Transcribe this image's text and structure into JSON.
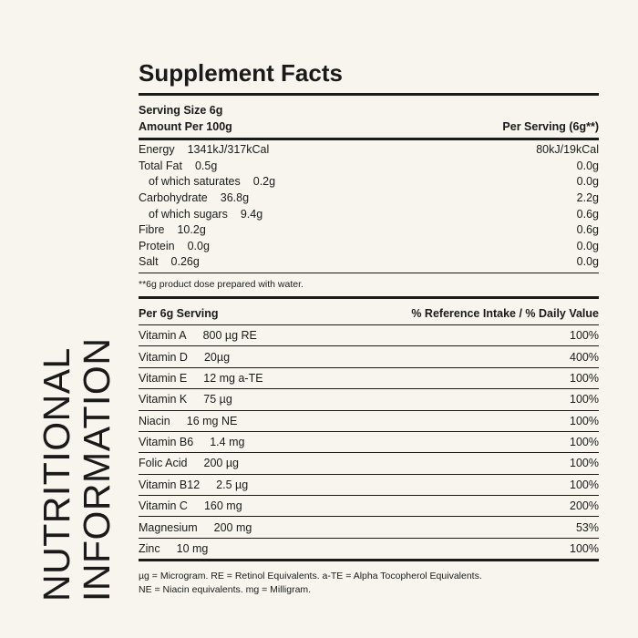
{
  "side_title": {
    "line1": "NUTRITIONAL",
    "line2": "INFORMATION"
  },
  "title": "Supplement Facts",
  "serving_size": "Serving Size 6g",
  "amount_per_100g": "Amount Per 100g",
  "per_serving_header": "Per Serving (6g**)",
  "nutrients": [
    {
      "label": "Energy",
      "per100": "1341kJ/317kCal",
      "per_serving": "80kJ/19kCal",
      "indent": false
    },
    {
      "label": "Total Fat",
      "per100": "0.5g",
      "per_serving": "0.0g",
      "indent": false
    },
    {
      "label": "of which saturates",
      "per100": "0.2g",
      "per_serving": "0.0g",
      "indent": true
    },
    {
      "label": "Carbohydrate",
      "per100": "36.8g",
      "per_serving": "2.2g",
      "indent": false
    },
    {
      "label": "of which sugars",
      "per100": "9.4g",
      "per_serving": "0.6g",
      "indent": true
    },
    {
      "label": "Fibre",
      "per100": "10.2g",
      "per_serving": "0.6g",
      "indent": false
    },
    {
      "label": "Protein",
      "per100": "0.0g",
      "per_serving": "0.0g",
      "indent": false
    },
    {
      "label": "Salt",
      "per100": "0.26g",
      "per_serving": "0.0g",
      "indent": false
    }
  ],
  "dose_note": "**6g product dose prepared with water.",
  "vitamins_header": {
    "left": "Per 6g Serving",
    "right": "% Reference Intake / % Daily Value"
  },
  "vitamins": [
    {
      "name": "Vitamin A",
      "amount": "800 µg RE",
      "percent": "100%"
    },
    {
      "name": "Vitamin D",
      "amount": "20µg",
      "percent": "400%"
    },
    {
      "name": "Vitamin E",
      "amount": "12 mg a-TE",
      "percent": "100%"
    },
    {
      "name": "Vitamin K",
      "amount": "75 µg",
      "percent": "100%"
    },
    {
      "name": "Niacin",
      "amount": "16 mg NE",
      "percent": "100%"
    },
    {
      "name": "Vitamin B6",
      "amount": "1.4 mg",
      "percent": "100%"
    },
    {
      "name": "Folic Acid",
      "amount": "200 µg",
      "percent": "100%"
    },
    {
      "name": "Vitamin B12",
      "amount": "2.5 µg",
      "percent": "100%"
    },
    {
      "name": "Vitamin C",
      "amount": "160 mg",
      "percent": "200%"
    },
    {
      "name": "Magnesium",
      "amount": "200 mg",
      "percent": "53%"
    },
    {
      "name": "Zinc",
      "amount": "10 mg",
      "percent": "100%"
    }
  ],
  "footnote": {
    "line1": "µg = Microgram. RE = Retinol Equivalents. a-TE = Alpha Tocopherol Equivalents.",
    "line2": "NE = Niacin equivalents. mg = Milligram."
  }
}
